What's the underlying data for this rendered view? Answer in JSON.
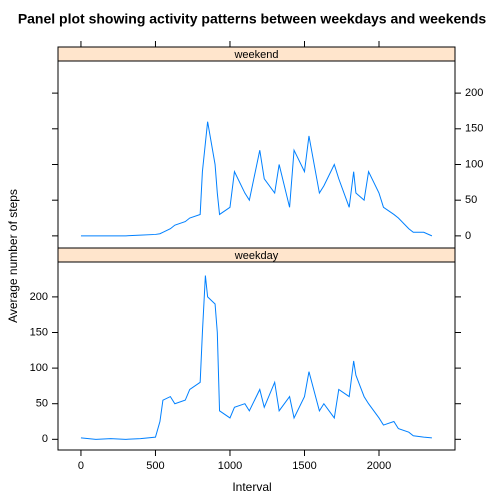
{
  "title": "Panel plot showing activity patterns between weekdays and weekends",
  "x_label": "Interval",
  "y_label": "Average number of steps",
  "chart_data": [
    {
      "type": "line",
      "panel": "weekend",
      "color": "#0080ff",
      "x": [
        0,
        100,
        200,
        300,
        400,
        500,
        530,
        550,
        600,
        630,
        700,
        730,
        800,
        815,
        835,
        850,
        900,
        915,
        930,
        1000,
        1030,
        1100,
        1130,
        1200,
        1230,
        1300,
        1330,
        1400,
        1430,
        1500,
        1530,
        1600,
        1630,
        1700,
        1730,
        1800,
        1830,
        1845,
        1900,
        1930,
        2000,
        2030,
        2100,
        2130,
        2200,
        2230,
        2300,
        2355
      ],
      "values": [
        0,
        0,
        0,
        0,
        1,
        2,
        3,
        5,
        10,
        15,
        20,
        25,
        30,
        90,
        130,
        160,
        100,
        60,
        30,
        40,
        90,
        60,
        50,
        120,
        80,
        60,
        100,
        40,
        120,
        90,
        140,
        60,
        70,
        100,
        80,
        40,
        90,
        60,
        50,
        90,
        60,
        40,
        30,
        25,
        10,
        5,
        5,
        0
      ],
      "xlim": [
        -154,
        2510
      ],
      "xticks": [
        0,
        500,
        1000,
        1500,
        2000
      ],
      "ylim": [
        -17,
        245
      ],
      "yticks": [
        0,
        50,
        100,
        150,
        200
      ]
    },
    {
      "type": "line",
      "panel": "weekday",
      "color": "#0080ff",
      "x": [
        0,
        100,
        200,
        300,
        400,
        500,
        530,
        550,
        600,
        630,
        700,
        730,
        800,
        815,
        835,
        850,
        900,
        915,
        930,
        1000,
        1030,
        1100,
        1130,
        1200,
        1230,
        1300,
        1330,
        1400,
        1430,
        1500,
        1530,
        1600,
        1630,
        1700,
        1730,
        1800,
        1830,
        1845,
        1900,
        1930,
        2000,
        2030,
        2100,
        2130,
        2200,
        2230,
        2300,
        2355
      ],
      "values": [
        2,
        0,
        1,
        0,
        1,
        3,
        25,
        55,
        60,
        50,
        55,
        70,
        80,
        150,
        230,
        200,
        190,
        150,
        40,
        30,
        45,
        50,
        40,
        70,
        45,
        80,
        40,
        60,
        30,
        60,
        95,
        40,
        50,
        30,
        70,
        60,
        110,
        90,
        60,
        50,
        30,
        20,
        25,
        15,
        10,
        5,
        3,
        2
      ],
      "xlim": [
        -154,
        2510
      ],
      "xticks": [
        0,
        500,
        1000,
        1500,
        2000
      ],
      "ylim": [
        -15,
        249
      ],
      "yticks": [
        0,
        50,
        100,
        150,
        200
      ]
    }
  ]
}
